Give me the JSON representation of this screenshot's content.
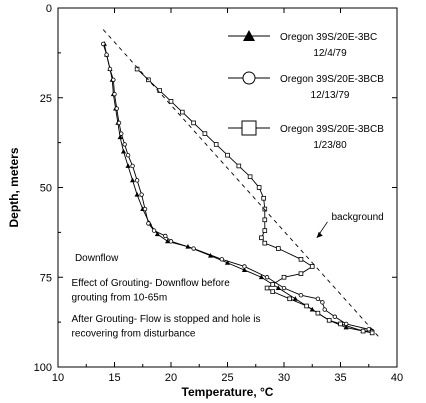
{
  "chart_data": {
    "type": "line",
    "xlabel": "Temperature, °C",
    "ylabel": "Depth, meters",
    "xlim": [
      10,
      40
    ],
    "ylim": [
      0,
      100
    ],
    "y_inverted": true,
    "x_ticks": [
      "10",
      "15",
      "20",
      "25",
      "30",
      "35",
      "40"
    ],
    "y_ticks": [
      "0",
      "25",
      "50",
      "75",
      "100"
    ],
    "grid": false,
    "legend_position": "top-right",
    "series": [
      {
        "name": "Oregon 39S/20E-3BC",
        "date": "12/4/79",
        "marker": "triangle",
        "points": [
          [
            14.1,
            10
          ],
          [
            14.3,
            13
          ],
          [
            14.6,
            17
          ],
          [
            14.8,
            20
          ],
          [
            14.9,
            24
          ],
          [
            15.1,
            28
          ],
          [
            15.3,
            32
          ],
          [
            15.5,
            36
          ],
          [
            15.8,
            40
          ],
          [
            16.2,
            44
          ],
          [
            16.6,
            48
          ],
          [
            17.0,
            52
          ],
          [
            17.5,
            56
          ],
          [
            18.1,
            60
          ],
          [
            18.8,
            63
          ],
          [
            19.7,
            65
          ],
          [
            21.5,
            66.5
          ],
          [
            23.5,
            69
          ],
          [
            25.0,
            71
          ],
          [
            26.5,
            73
          ],
          [
            28.0,
            75
          ],
          [
            29.5,
            78
          ],
          [
            31.0,
            81
          ],
          [
            32.5,
            84
          ],
          [
            34.0,
            87
          ],
          [
            35.5,
            89
          ],
          [
            37.0,
            90
          ],
          [
            37.8,
            90
          ]
        ]
      },
      {
        "name": "Oregon 39S/20E-3BCB",
        "date": "12/13/79",
        "marker": "circle",
        "points": [
          [
            14.0,
            10
          ],
          [
            14.3,
            13
          ],
          [
            14.6,
            17
          ],
          [
            14.9,
            20
          ],
          [
            15.0,
            24
          ],
          [
            15.2,
            28
          ],
          [
            15.4,
            32
          ],
          [
            15.6,
            35
          ],
          [
            15.9,
            38
          ],
          [
            16.2,
            41
          ],
          [
            16.6,
            44
          ],
          [
            17.0,
            48
          ],
          [
            17.4,
            52
          ],
          [
            17.7,
            56
          ],
          [
            18.0,
            60
          ],
          [
            18.5,
            62
          ],
          [
            19.5,
            63.5
          ],
          [
            20.0,
            65
          ],
          [
            22.0,
            67
          ],
          [
            24.5,
            70
          ],
          [
            26.5,
            72
          ],
          [
            28.5,
            75
          ],
          [
            30.0,
            78
          ],
          [
            31.5,
            80
          ],
          [
            33.0,
            81
          ],
          [
            33.4,
            82
          ],
          [
            33.6,
            84
          ],
          [
            34.5,
            86
          ],
          [
            35.5,
            88
          ],
          [
            37.5,
            89.5
          ],
          [
            37.8,
            90
          ]
        ]
      },
      {
        "name": "Oregon 39S/20E-3BCB",
        "date": "1/23/80",
        "marker": "square",
        "points": [
          [
            17.0,
            17
          ],
          [
            18.0,
            20
          ],
          [
            19.0,
            23
          ],
          [
            20.0,
            26
          ],
          [
            21.0,
            29
          ],
          [
            22.0,
            32
          ],
          [
            23.0,
            35
          ],
          [
            24.0,
            38
          ],
          [
            25.0,
            41
          ],
          [
            26.0,
            44
          ],
          [
            27.0,
            47
          ],
          [
            27.8,
            50
          ],
          [
            28.2,
            53
          ],
          [
            28.3,
            56
          ],
          [
            28.3,
            59
          ],
          [
            28.3,
            62
          ],
          [
            28.0,
            64
          ],
          [
            28.3,
            65.5
          ],
          [
            29.5,
            67
          ],
          [
            31.5,
            70
          ],
          [
            32.5,
            72
          ],
          [
            31.5,
            74
          ],
          [
            30.0,
            75
          ],
          [
            29.0,
            77
          ],
          [
            28.5,
            78
          ],
          [
            29.0,
            79
          ],
          [
            30.5,
            81
          ],
          [
            32.0,
            83
          ],
          [
            33.0,
            85
          ],
          [
            34.0,
            87
          ],
          [
            35.0,
            88
          ],
          [
            37.0,
            90
          ],
          [
            37.8,
            90.5
          ]
        ]
      },
      {
        "name": "background",
        "dashed": true,
        "points": [
          [
            14.0,
            6
          ],
          [
            38.5,
            92
          ]
        ]
      }
    ],
    "annotations": [
      {
        "text": "background",
        "x": 34.2,
        "y": 59,
        "arrow_to": [
          32.9,
          64
        ]
      },
      {
        "text": "Downflow",
        "x": 11.5,
        "y": 70.5
      },
      {
        "text": "Effect of Grouting- Downflow before",
        "x": 11.2,
        "y": 77.5
      },
      {
        "text": "grouting from 10-65m",
        "x": 11.2,
        "y": 81.5
      },
      {
        "text": "After Grouting- Flow is stopped and hole is",
        "x": 11.2,
        "y": 87.5
      },
      {
        "text": "recovering from disturbance",
        "x": 11.2,
        "y": 91.5
      }
    ]
  }
}
